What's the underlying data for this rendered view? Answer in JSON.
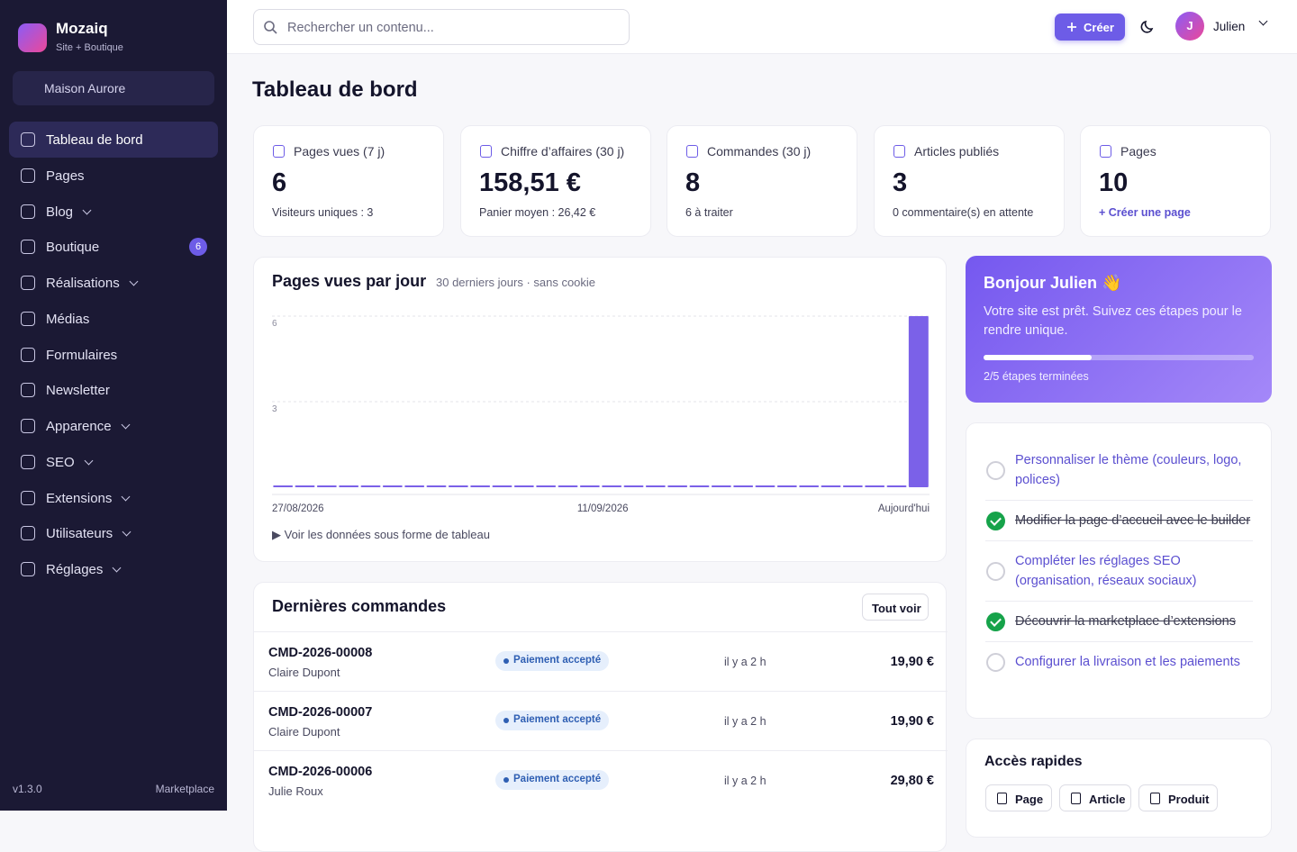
{
  "sidebar": {
    "brand": "Mozaiq",
    "subtitle": "Site + Boutique",
    "site": "Maison Aurore",
    "nav": [
      {
        "label": "Tableau de bord",
        "active": true
      },
      {
        "label": "Pages"
      },
      {
        "label": "Blog",
        "submenu": true
      },
      {
        "label": "Boutique",
        "badge": "6"
      },
      {
        "label": "Réalisations",
        "submenu": true
      },
      {
        "label": "Médias"
      },
      {
        "label": "Formulaires"
      },
      {
        "label": "Newsletter"
      },
      {
        "label": "Apparence",
        "submenu": true
      },
      {
        "label": "SEO",
        "submenu": true
      },
      {
        "label": "Extensions",
        "submenu": true
      },
      {
        "label": "Utilisateurs",
        "submenu": true
      },
      {
        "label": "Réglages",
        "submenu": true
      }
    ],
    "version": "v1.3.0",
    "marketplace": "Marketplace"
  },
  "topbar": {
    "search_placeholder": "Rechercher un contenu...",
    "create": "Créer",
    "avatar_initial": "J",
    "user": "Julien"
  },
  "page_title": "Tableau de bord",
  "kpis": [
    {
      "label": "Pages vues (7 j)",
      "value": "6",
      "sub": "Visiteurs uniques : 3"
    },
    {
      "label": "Chiffre d’affaires (30 j)",
      "value": "158,51 €",
      "sub": "Panier moyen : 26,42 €"
    },
    {
      "label": "Commandes (30 j)",
      "value": "8",
      "sub": "6 à traiter"
    },
    {
      "label": "Articles publiés",
      "value": "3",
      "sub": "0 commentaire(s) en attente"
    },
    {
      "label": "Pages",
      "value": "10",
      "sub": "+ Créer une page",
      "link": true
    }
  ],
  "chart_data": {
    "type": "bar",
    "title": "Pages vues par jour",
    "subtitle": "30 derniers jours · sans cookie",
    "categories": [
      "27/08/2026",
      null,
      null,
      null,
      null,
      null,
      null,
      null,
      null,
      null,
      null,
      null,
      null,
      null,
      null,
      "11/09/2026",
      null,
      null,
      null,
      null,
      null,
      null,
      null,
      null,
      null,
      null,
      null,
      null,
      null,
      "Aujourd'hui"
    ],
    "values": [
      0,
      0,
      0,
      0,
      0,
      0,
      0,
      0,
      0,
      0,
      0,
      0,
      0,
      0,
      0,
      0,
      0,
      0,
      0,
      0,
      0,
      0,
      0,
      0,
      0,
      0,
      0,
      0,
      0,
      6
    ],
    "color": "#7b61e8",
    "ylim": [
      0,
      6
    ],
    "yticks": [
      3,
      6
    ],
    "grid": true
  },
  "chart_toggle": "Voir les données sous forme de tableau",
  "orders": {
    "title": "Dernières commandes",
    "view_all": "Tout voir",
    "rows": [
      {
        "id": "CMD-2026-00008",
        "customer": "Claire Dupont",
        "status": "Paiement accepté",
        "time": "il y a 2 h",
        "amount": "19,90 €"
      },
      {
        "id": "CMD-2026-00007",
        "customer": "Claire Dupont",
        "status": "Paiement accepté",
        "time": "il y a 2 h",
        "amount": "19,90 €"
      },
      {
        "id": "CMD-2026-00006",
        "customer": "Julie Roux",
        "status": "Paiement accepté",
        "time": "il y a 2 h",
        "amount": "29,80 €"
      }
    ]
  },
  "welcome": {
    "title": "Bonjour Julien 👋",
    "text": "Votre site est prêt. Suivez ces étapes pour le rendre unique.",
    "steps_done": 2,
    "steps_total": 5,
    "progress_label": "2/5 étapes terminées"
  },
  "checklist": [
    {
      "label": "Personnaliser le thème (couleurs, logo, polices)",
      "done": false
    },
    {
      "label": "Modifier la page d’accueil avec le builder",
      "done": true
    },
    {
      "label": "Compléter les réglages SEO (organisation, réseaux sociaux)",
      "done": false
    },
    {
      "label": "Découvrir la marketplace d’extensions",
      "done": true
    },
    {
      "label": "Configurer la livraison et les paiements",
      "done": false
    }
  ],
  "quick_access": {
    "title": "Accès rapides",
    "buttons": [
      "Page",
      "Article",
      "Produit"
    ]
  }
}
